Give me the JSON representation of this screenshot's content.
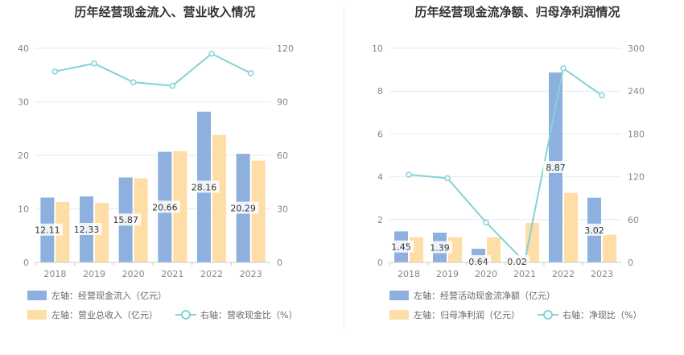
{
  "colors": {
    "bar_primary": "#8eb0de",
    "bar_secondary": "#ffdda6",
    "line": "#84d2d6",
    "grid": "#e6e9f0",
    "axis": "#cccccc",
    "label_bg": "#ffffff"
  },
  "chart_data": [
    {
      "type": "bar",
      "title": "历年经营现金流入、营业收入情况",
      "categories": [
        "2018",
        "2019",
        "2020",
        "2021",
        "2022",
        "2023"
      ],
      "left_axis": {
        "ylim": [
          0,
          40
        ],
        "ticks": [
          "0",
          "10",
          "20",
          "30",
          "40"
        ]
      },
      "right_axis": {
        "ylim": [
          0,
          120
        ],
        "ticks": [
          "0",
          "30",
          "60",
          "90",
          "120"
        ]
      },
      "series": [
        {
          "name": "左轴：经营现金流入（亿元）",
          "kind": "bar",
          "axis": "left",
          "values": [
            12.11,
            12.33,
            15.87,
            20.66,
            28.16,
            20.29
          ],
          "labels": [
            "12.11",
            "12.33",
            "15.87",
            "20.66",
            "28.16",
            "20.29"
          ]
        },
        {
          "name": "左轴：营业总收入（亿元）",
          "kind": "bar",
          "axis": "left",
          "values": [
            11.3,
            11.1,
            15.7,
            20.8,
            23.8,
            19.0
          ]
        },
        {
          "name": "右轴：营收现金比（%）",
          "kind": "line",
          "axis": "right",
          "values": [
            107,
            111.5,
            101,
            99,
            117,
            106
          ]
        }
      ]
    },
    {
      "type": "bar",
      "title": "历年经营现金流净额、归母净利润情况",
      "categories": [
        "2018",
        "2019",
        "2020",
        "2021",
        "2022",
        "2023"
      ],
      "left_axis": {
        "ylim": [
          0,
          10
        ],
        "ticks": [
          "0",
          "2",
          "4",
          "6",
          "8",
          "10"
        ]
      },
      "right_axis": {
        "ylim": [
          0,
          300
        ],
        "ticks": [
          "0",
          "60",
          "120",
          "180",
          "240",
          "300"
        ]
      },
      "series": [
        {
          "name": "左轴：经营活动现金流净额（亿元）",
          "kind": "bar",
          "axis": "left",
          "values": [
            1.45,
            1.39,
            0.64,
            0.02,
            8.87,
            3.02
          ],
          "labels": [
            "1.45",
            "1.39",
            "0.64",
            "0.02",
            "8.87",
            "3.02"
          ]
        },
        {
          "name": "左轴：归母净利润（亿元）",
          "kind": "bar",
          "axis": "left",
          "values": [
            1.18,
            1.18,
            1.17,
            1.85,
            3.25,
            1.3
          ]
        },
        {
          "name": "右轴：净现比（%）",
          "kind": "line",
          "axis": "right",
          "values": [
            123,
            118,
            56,
            1,
            272,
            234
          ]
        }
      ]
    }
  ]
}
